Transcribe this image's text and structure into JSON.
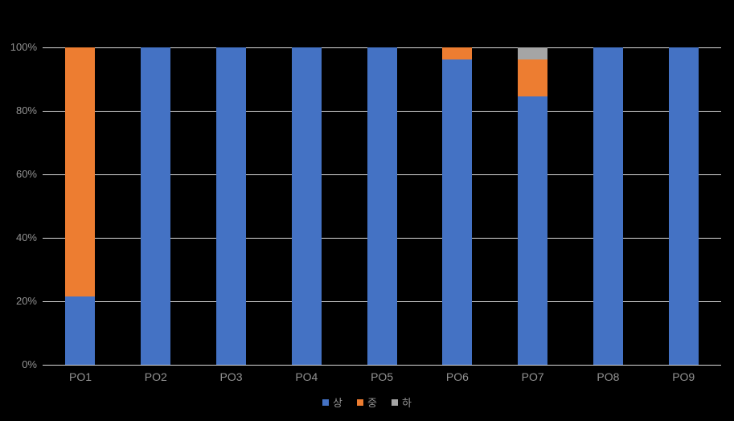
{
  "chart_data": {
    "type": "bar",
    "subtype": "100%-stacked-column",
    "title": "",
    "xlabel": "",
    "ylabel": "",
    "categories": [
      "PO1",
      "PO2",
      "PO3",
      "PO4",
      "PO5",
      "PO6",
      "PO7",
      "PO8",
      "PO9"
    ],
    "series": [
      {
        "name": "상",
        "color": "#4472C4",
        "values": [
          21.5,
          100,
          100,
          100,
          100,
          96.3,
          84.6,
          100,
          100
        ]
      },
      {
        "name": "중",
        "color": "#ED7D31",
        "values": [
          78.5,
          0,
          0,
          0,
          0,
          3.7,
          11.6,
          0,
          0
        ]
      },
      {
        "name": "하",
        "color": "#A5A5A5",
        "values": [
          0,
          0,
          0,
          0,
          0,
          0,
          3.8,
          0,
          0
        ]
      }
    ],
    "y_ticks": [
      {
        "label": "0%",
        "value": 0
      },
      {
        "label": "20%",
        "value": 20
      },
      {
        "label": "40%",
        "value": 40
      },
      {
        "label": "60%",
        "value": 60
      },
      {
        "label": "80%",
        "value": 80
      },
      {
        "label": "100%",
        "value": 100
      }
    ],
    "ylim": [
      0,
      100
    ],
    "grid": true,
    "legend_position": "bottom"
  },
  "colors": {
    "background": "#000000",
    "gridline": "#D9D9D9",
    "axis_text": "#929292"
  }
}
